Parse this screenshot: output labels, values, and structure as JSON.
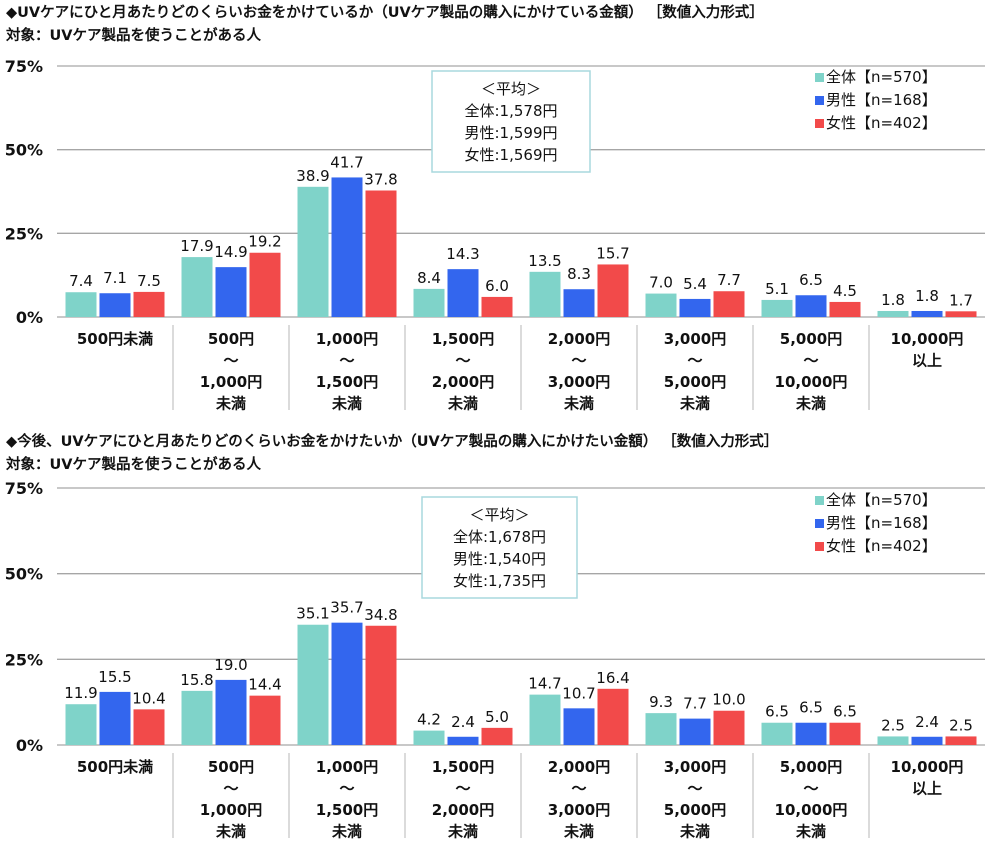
{
  "colors": {
    "全体": "#7fd3c9",
    "男性": "#3366ee",
    "女性": "#f24a4a",
    "grid": "#a6a6a6",
    "avg_box_border": "#a8d8de"
  },
  "chart_data": [
    {
      "type": "bar",
      "title": "◆UVケアにひと月あたりどのくらいお金をかけているか（UVケア製品の購入にかけている金額） ［数値入力形式］",
      "subtitle": "対象：UVケア製品を使うことがある人",
      "ylim": [
        0,
        75
      ],
      "yticks": [
        "0%",
        "25%",
        "50%",
        "75%"
      ],
      "grid": true,
      "legend_position": "top-right",
      "categories": [
        [
          "500円未満"
        ],
        [
          "500円",
          "～",
          "1,000円",
          "未満"
        ],
        [
          "1,000円",
          "～",
          "1,500円",
          "未満"
        ],
        [
          "1,500円",
          "～",
          "2,000円",
          "未満"
        ],
        [
          "2,000円",
          "～",
          "3,000円",
          "未満"
        ],
        [
          "3,000円",
          "～",
          "5,000円",
          "未満"
        ],
        [
          "5,000円",
          "～",
          "10,000円",
          "未満"
        ],
        [
          "10,000円",
          "以上"
        ]
      ],
      "series": [
        {
          "name": "全体【n=570】",
          "key": "全体",
          "values": [
            7.4,
            17.9,
            38.9,
            8.4,
            13.5,
            7.0,
            5.1,
            1.8
          ]
        },
        {
          "name": "男性【n=168】",
          "key": "男性",
          "values": [
            7.1,
            14.9,
            41.7,
            14.3,
            8.3,
            5.4,
            6.5,
            1.8
          ]
        },
        {
          "name": "女性【n=402】",
          "key": "女性",
          "values": [
            7.5,
            19.2,
            37.8,
            6.0,
            15.7,
            7.7,
            4.5,
            1.7
          ]
        }
      ],
      "annotation": [
        "＜平均＞",
        "全体:1,578円",
        "男性:1,599円",
        "女性:1,569円"
      ]
    },
    {
      "type": "bar",
      "title": "◆今後、UVケアにひと月あたりどのくらいお金をかけたいか（UVケア製品の購入にかけたい金額） ［数値入力形式］",
      "subtitle": "対象：UVケア製品を使うことがある人",
      "ylim": [
        0,
        75
      ],
      "yticks": [
        "0%",
        "25%",
        "50%",
        "75%"
      ],
      "grid": true,
      "legend_position": "top-right",
      "categories": [
        [
          "500円未満"
        ],
        [
          "500円",
          "～",
          "1,000円",
          "未満"
        ],
        [
          "1,000円",
          "～",
          "1,500円",
          "未満"
        ],
        [
          "1,500円",
          "～",
          "2,000円",
          "未満"
        ],
        [
          "2,000円",
          "～",
          "3,000円",
          "未満"
        ],
        [
          "3,000円",
          "～",
          "5,000円",
          "未満"
        ],
        [
          "5,000円",
          "～",
          "10,000円",
          "未満"
        ],
        [
          "10,000円",
          "以上"
        ]
      ],
      "series": [
        {
          "name": "全体【n=570】",
          "key": "全体",
          "values": [
            11.9,
            15.8,
            35.1,
            4.2,
            14.7,
            9.3,
            6.5,
            2.5
          ]
        },
        {
          "name": "男性【n=168】",
          "key": "男性",
          "values": [
            15.5,
            19.0,
            35.7,
            2.4,
            10.7,
            7.7,
            6.5,
            2.4
          ]
        },
        {
          "name": "女性【n=402】",
          "key": "女性",
          "values": [
            10.4,
            14.4,
            34.8,
            5.0,
            16.4,
            10.0,
            6.5,
            2.5
          ]
        }
      ],
      "annotation": [
        "＜平均＞",
        "全体:1,678円",
        "男性:1,540円",
        "女性:1,735円"
      ]
    }
  ]
}
